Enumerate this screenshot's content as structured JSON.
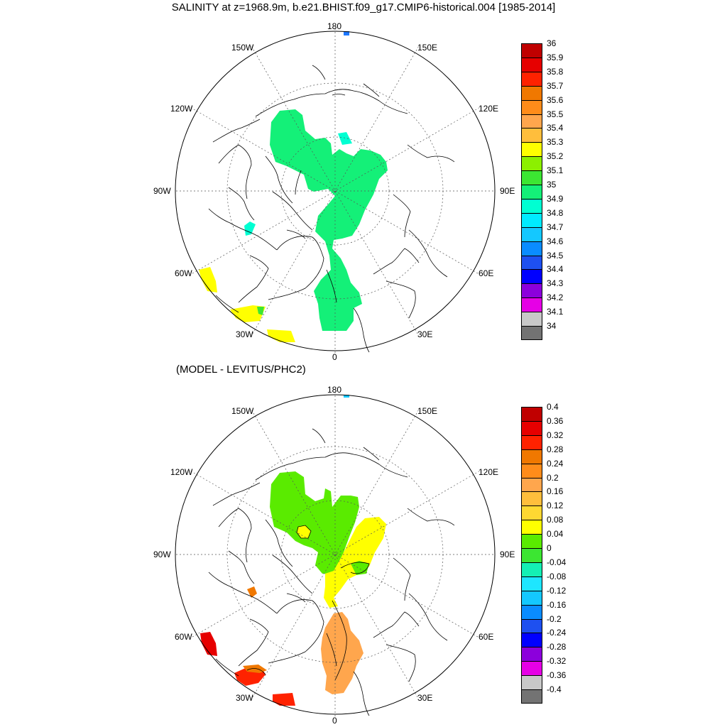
{
  "title": "SALINITY at z=1968.9m, b.e21.BHIST.f09_g17.CMIP6-historical.004 [1985-2014]",
  "panels": [
    {
      "id": "top",
      "lon_labels": {
        "lon180": "180",
        "lon150W": "150W",
        "lon150E": "150E",
        "lon120W": "120W",
        "lon120E": "120E",
        "lon90W": "90W",
        "lon90E": "90E",
        "lon60W": "60W",
        "lon60E": "60E",
        "lon30W": "30W",
        "lon30E": "30E",
        "lon0": "0"
      },
      "colorbar": {
        "labels": [
          "36",
          "35.9",
          "35.8",
          "35.7",
          "35.6",
          "35.5",
          "35.4",
          "35.3",
          "35.2",
          "35.1",
          "35",
          "34.9",
          "34.8",
          "34.7",
          "34.6",
          "34.5",
          "34.4",
          "34.3",
          "34.2",
          "34.1",
          "34"
        ],
        "colors": [
          "#c00000",
          "#e60000",
          "#ff2200",
          "#f07800",
          "#ff8c1a",
          "#ffa64d",
          "#ffbe3c",
          "#ffff00",
          "#8cf000",
          "#3ce632",
          "#14f078",
          "#00ffd2",
          "#00ebff",
          "#14c8ff",
          "#0a8cff",
          "#1e50f0",
          "#0000ff",
          "#8c00dc",
          "#e600e6",
          "#c8c8c8",
          "#737373"
        ]
      }
    },
    {
      "id": "bottom",
      "subtitle": "(MODEL - LEVITUS/PHC2)",
      "lon_labels": {
        "lon180": "180",
        "lon150W": "150W",
        "lon150E": "150E",
        "lon120W": "120W",
        "lon120E": "120E",
        "lon90W": "90W",
        "lon90E": "90E",
        "lon60W": "60W",
        "lon60E": "60E",
        "lon30W": "30W",
        "lon30E": "30E",
        "lon0": "0"
      },
      "colorbar": {
        "labels": [
          "0.4",
          "0.36",
          "0.32",
          "0.28",
          "0.24",
          "0.2",
          "0.16",
          "0.12",
          "0.08",
          "0.04",
          "0",
          "-0.04",
          "-0.08",
          "-0.12",
          "-0.16",
          "-0.2",
          "-0.24",
          "-0.28",
          "-0.32",
          "-0.36",
          "-0.4"
        ],
        "colors": [
          "#c00000",
          "#e60000",
          "#ff2200",
          "#f07800",
          "#ff8c1a",
          "#ffa64d",
          "#ffbe3c",
          "#ffd832",
          "#ffff00",
          "#5aeb00",
          "#3ce632",
          "#14f0b4",
          "#1ee6ff",
          "#14c8ff",
          "#0a8cff",
          "#1e50f0",
          "#0000ff",
          "#8c00dc",
          "#e600e6",
          "#c8c8c8",
          "#737373"
        ]
      }
    }
  ]
}
